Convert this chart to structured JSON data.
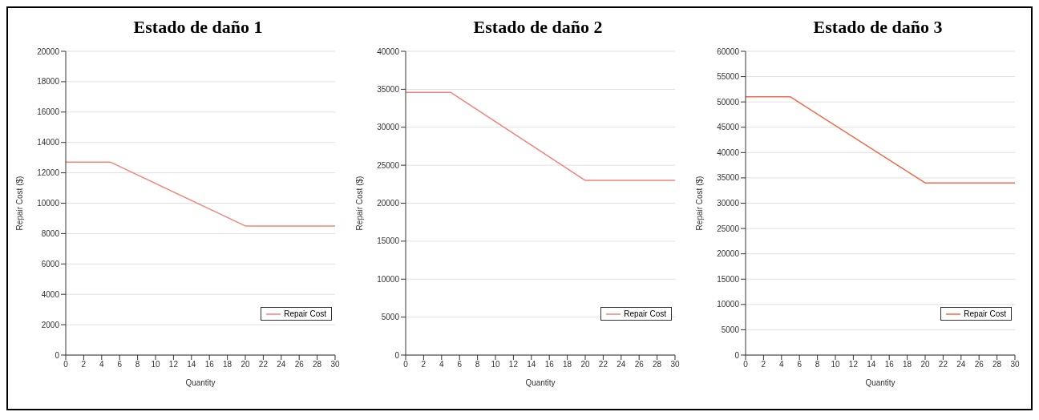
{
  "chart_data": [
    {
      "type": "line",
      "title": "Estado de daño 1",
      "xlabel": "Quantity",
      "ylabel": "Repair Cost ($)",
      "x": [
        0,
        5,
        20,
        30
      ],
      "series": [
        {
          "name": "Repair Cost",
          "color": "#f4827a",
          "values": [
            12700,
            12700,
            8500,
            8500
          ]
        }
      ],
      "xlim": [
        0,
        30
      ],
      "xticks": [
        0,
        2,
        4,
        6,
        8,
        10,
        12,
        14,
        16,
        18,
        20,
        22,
        24,
        26,
        28,
        30
      ],
      "ylim": [
        0,
        20000
      ],
      "yticks": [
        0,
        2000,
        4000,
        6000,
        8000,
        10000,
        12000,
        14000,
        16000,
        18000,
        20000
      ],
      "grid": "y",
      "legend": "bottom right",
      "marker": "none",
      "line_style": "solid"
    },
    {
      "type": "line",
      "title": "Estado de daño 2",
      "xlabel": "Quantity",
      "ylabel": "Repair Cost ($)",
      "x": [
        0,
        5,
        20,
        30
      ],
      "series": [
        {
          "name": "Repair Cost",
          "color": "#f4827a",
          "values": [
            34600,
            34600,
            23000,
            23000
          ]
        }
      ],
      "xlim": [
        0,
        30
      ],
      "xticks": [
        0,
        2,
        4,
        6,
        8,
        10,
        12,
        14,
        16,
        18,
        20,
        22,
        24,
        26,
        28,
        30
      ],
      "ylim": [
        0,
        40000
      ],
      "yticks": [
        0,
        5000,
        10000,
        15000,
        20000,
        25000,
        30000,
        35000,
        40000
      ],
      "grid": "y",
      "legend": "bottom right",
      "marker": "none",
      "line_style": "solid"
    },
    {
      "type": "line",
      "title": "Estado de daño 3",
      "xlabel": "Quantity",
      "ylabel": "Repair Cost ($)",
      "x": [
        0,
        5,
        20,
        30
      ],
      "series": [
        {
          "name": "Repair Cost",
          "color": "#ee6a4a",
          "values": [
            51000,
            51000,
            34000,
            34000
          ]
        }
      ],
      "xlim": [
        0,
        30
      ],
      "xticks": [
        0,
        2,
        4,
        6,
        8,
        10,
        12,
        14,
        16,
        18,
        20,
        22,
        24,
        26,
        28,
        30
      ],
      "ylim": [
        0,
        60000
      ],
      "yticks": [
        0,
        5000,
        10000,
        15000,
        20000,
        25000,
        30000,
        35000,
        40000,
        45000,
        50000,
        55000,
        60000
      ],
      "grid": "y",
      "legend": "bottom right",
      "marker": "none",
      "line_style": "solid"
    }
  ]
}
